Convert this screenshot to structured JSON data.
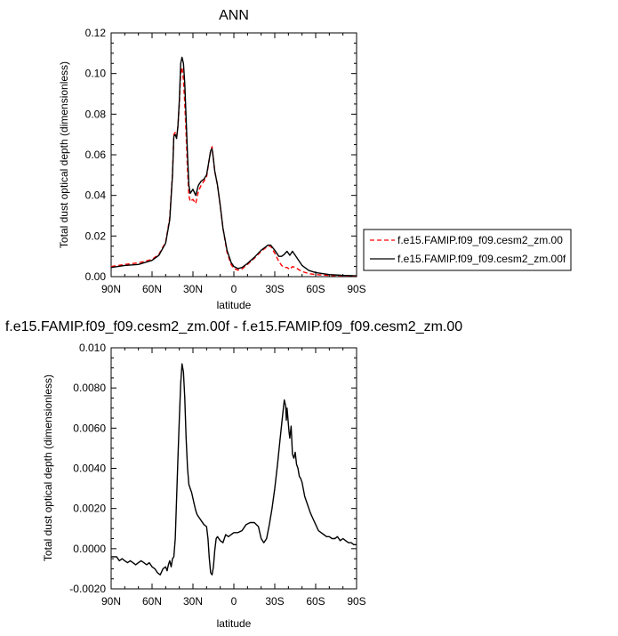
{
  "chart_data": [
    {
      "type": "line",
      "title": "ANN",
      "xlabel": "latitude",
      "ylabel": "Total dust optical depth (dimensionless)",
      "x_ticks": [
        "90N",
        "60N",
        "30N",
        "0",
        "30S",
        "60S",
        "90S"
      ],
      "y_ticks": [
        "0.00",
        "0.02",
        "0.04",
        "0.06",
        "0.08",
        "0.10",
        "0.12"
      ],
      "xlim": [
        90,
        -90
      ],
      "ylim": [
        0,
        0.12
      ],
      "legend_position": "right",
      "series": [
        {
          "name": "f.e15.FAMIP.f09_f09.cesm2_zm.00",
          "color": "#ff0000",
          "dash": "dashed",
          "x": [
            90,
            80,
            70,
            60,
            55,
            50,
            47,
            45,
            44,
            43,
            42,
            41,
            40,
            39,
            38,
            37,
            36,
            35,
            34,
            33,
            32,
            30,
            28,
            26,
            24,
            22,
            20,
            18,
            17,
            16,
            15,
            14,
            12,
            10,
            8,
            5,
            2,
            0,
            -3,
            -6,
            -10,
            -15,
            -20,
            -23,
            -25,
            -27,
            -30,
            -33,
            -35,
            -37,
            -39,
            -41,
            -43,
            -45,
            -50,
            -55,
            -60,
            -70,
            -80,
            -90
          ],
          "y": [
            0.005,
            0.006,
            0.0068,
            0.0085,
            0.011,
            0.017,
            0.029,
            0.051,
            0.07,
            0.071,
            0.069,
            0.074,
            0.085,
            0.1,
            0.103,
            0.097,
            0.085,
            0.07,
            0.052,
            0.04,
            0.037,
            0.038,
            0.036,
            0.042,
            0.045,
            0.047,
            0.049,
            0.058,
            0.062,
            0.064,
            0.058,
            0.052,
            0.045,
            0.035,
            0.024,
            0.012,
            0.006,
            0.004,
            0.0032,
            0.0038,
            0.006,
            0.009,
            0.0125,
            0.014,
            0.015,
            0.015,
            0.0115,
            0.0075,
            0.0055,
            0.0045,
            0.0045,
            0.0035,
            0.005,
            0.0045,
            0.0025,
            0.0015,
            0.001,
            0.0006,
            0.0004,
            0.0003
          ]
        },
        {
          "name": "f.e15.FAMIP.f09_f09.cesm2_zm.00f",
          "color": "#000000",
          "dash": "solid",
          "x": [
            90,
            80,
            70,
            60,
            55,
            50,
            47,
            45,
            44,
            43,
            42,
            41,
            40,
            39,
            38,
            37,
            36,
            35,
            34,
            33,
            32,
            30,
            28,
            26,
            24,
            22,
            20,
            18,
            17,
            16,
            15,
            14,
            12,
            10,
            8,
            5,
            2,
            0,
            -3,
            -6,
            -10,
            -15,
            -20,
            -23,
            -25,
            -27,
            -30,
            -33,
            -35,
            -37,
            -39,
            -41,
            -43,
            -45,
            -50,
            -55,
            -60,
            -70,
            -80,
            -90
          ],
          "y": [
            0.0045,
            0.0055,
            0.006,
            0.008,
            0.0105,
            0.0165,
            0.028,
            0.05,
            0.069,
            0.07,
            0.068,
            0.074,
            0.087,
            0.105,
            0.108,
            0.105,
            0.095,
            0.078,
            0.06,
            0.045,
            0.041,
            0.043,
            0.04,
            0.045,
            0.047,
            0.048,
            0.05,
            0.058,
            0.062,
            0.063,
            0.058,
            0.052,
            0.045,
            0.035,
            0.024,
            0.013,
            0.007,
            0.005,
            0.004,
            0.0045,
            0.0065,
            0.0095,
            0.013,
            0.0145,
            0.0155,
            0.0155,
            0.013,
            0.01,
            0.01,
            0.011,
            0.0125,
            0.0105,
            0.0125,
            0.0105,
            0.0055,
            0.003,
            0.002,
            0.001,
            0.0006,
            0.0004
          ]
        }
      ]
    },
    {
      "type": "line",
      "title": "f.e15.FAMIP.f09_f09.cesm2_zm.00f - f.e15.FAMIP.f09_f09.cesm2_zm.00",
      "xlabel": "latitude",
      "ylabel": "Total dust optical depth (dimensionless)",
      "x_ticks": [
        "90N",
        "60N",
        "30N",
        "0",
        "30S",
        "60S",
        "90S"
      ],
      "y_ticks": [
        "-0.0020",
        "0.0000",
        "0.0020",
        "0.0040",
        "0.0060",
        "0.0080",
        "0.010"
      ],
      "xlim": [
        90,
        -90
      ],
      "ylim": [
        -0.002,
        0.01
      ],
      "series": [
        {
          "color": "#000000",
          "x": [
            90,
            86,
            84,
            82,
            80,
            78,
            76,
            74,
            72,
            70,
            68,
            66,
            64,
            62,
            60,
            58,
            56,
            54,
            52,
            50,
            49,
            48,
            47,
            46,
            45,
            44,
            43,
            42,
            41,
            40,
            39,
            38,
            37,
            36,
            35,
            34,
            33,
            32,
            31,
            30,
            29,
            28,
            27,
            26,
            25,
            24,
            22,
            20,
            19,
            18,
            17,
            16,
            15,
            14,
            13,
            12,
            11,
            10,
            8,
            6,
            4,
            2,
            0,
            -3,
            -6,
            -9,
            -12,
            -15,
            -18,
            -20,
            -22,
            -24,
            -26,
            -28,
            -30,
            -32,
            -34,
            -36,
            -37,
            -38,
            -38.5,
            -39,
            -39.5,
            -40,
            -40.5,
            -41,
            -42,
            -43,
            -44,
            -45,
            -46,
            -47,
            -48,
            -49,
            -50,
            -52,
            -54,
            -56,
            -58,
            -60,
            -62,
            -64,
            -66,
            -68,
            -70,
            -72,
            -74,
            -76,
            -78,
            -80,
            -82,
            -84,
            -86,
            -88,
            -90
          ],
          "y": [
            -0.0004,
            -0.0004,
            -0.0006,
            -0.0005,
            -0.0006,
            -0.0007,
            -0.0006,
            -0.0007,
            -0.0008,
            -0.0007,
            -0.0006,
            -0.0007,
            -0.0008,
            -0.0007,
            -0.0009,
            -0.001,
            -0.0012,
            -0.0013,
            -0.001,
            -0.0009,
            -0.0011,
            -0.0008,
            -0.0006,
            -0.0009,
            -0.0005,
            -0.0004,
            0.0005,
            0.0025,
            0.0045,
            0.0065,
            0.0082,
            0.0092,
            0.0088,
            0.0075,
            0.0055,
            0.004,
            0.0032,
            0.003,
            0.0028,
            0.0025,
            0.0022,
            0.0019,
            0.0017,
            0.0016,
            0.0015,
            0.0014,
            0.0012,
            0.0011,
            0.0005,
            -0.0005,
            -0.0012,
            -0.0013,
            -0.0009,
            -0.0001,
            0.0005,
            0.0006,
            0.0005,
            0.0004,
            0.0003,
            0.0007,
            0.0006,
            0.0007,
            0.0008,
            0.0008,
            0.0009,
            0.0012,
            0.0013,
            0.0013,
            0.0011,
            0.0005,
            0.0003,
            0.0005,
            0.0012,
            0.002,
            0.003,
            0.0042,
            0.0055,
            0.0068,
            0.0074,
            0.0071,
            0.0064,
            0.007,
            0.0066,
            0.0062,
            0.0058,
            0.0055,
            0.0061,
            0.0047,
            0.0045,
            0.0048,
            0.0042,
            0.004,
            0.0036,
            0.0035,
            0.0033,
            0.0026,
            0.0022,
            0.0018,
            0.0015,
            0.0012,
            0.0009,
            0.0008,
            0.0007,
            0.0006,
            0.0006,
            0.0005,
            0.0005,
            0.0006,
            0.0004,
            0.0005,
            0.0004,
            0.0003,
            0.0003,
            0.0002,
            0.0002
          ]
        }
      ]
    }
  ]
}
